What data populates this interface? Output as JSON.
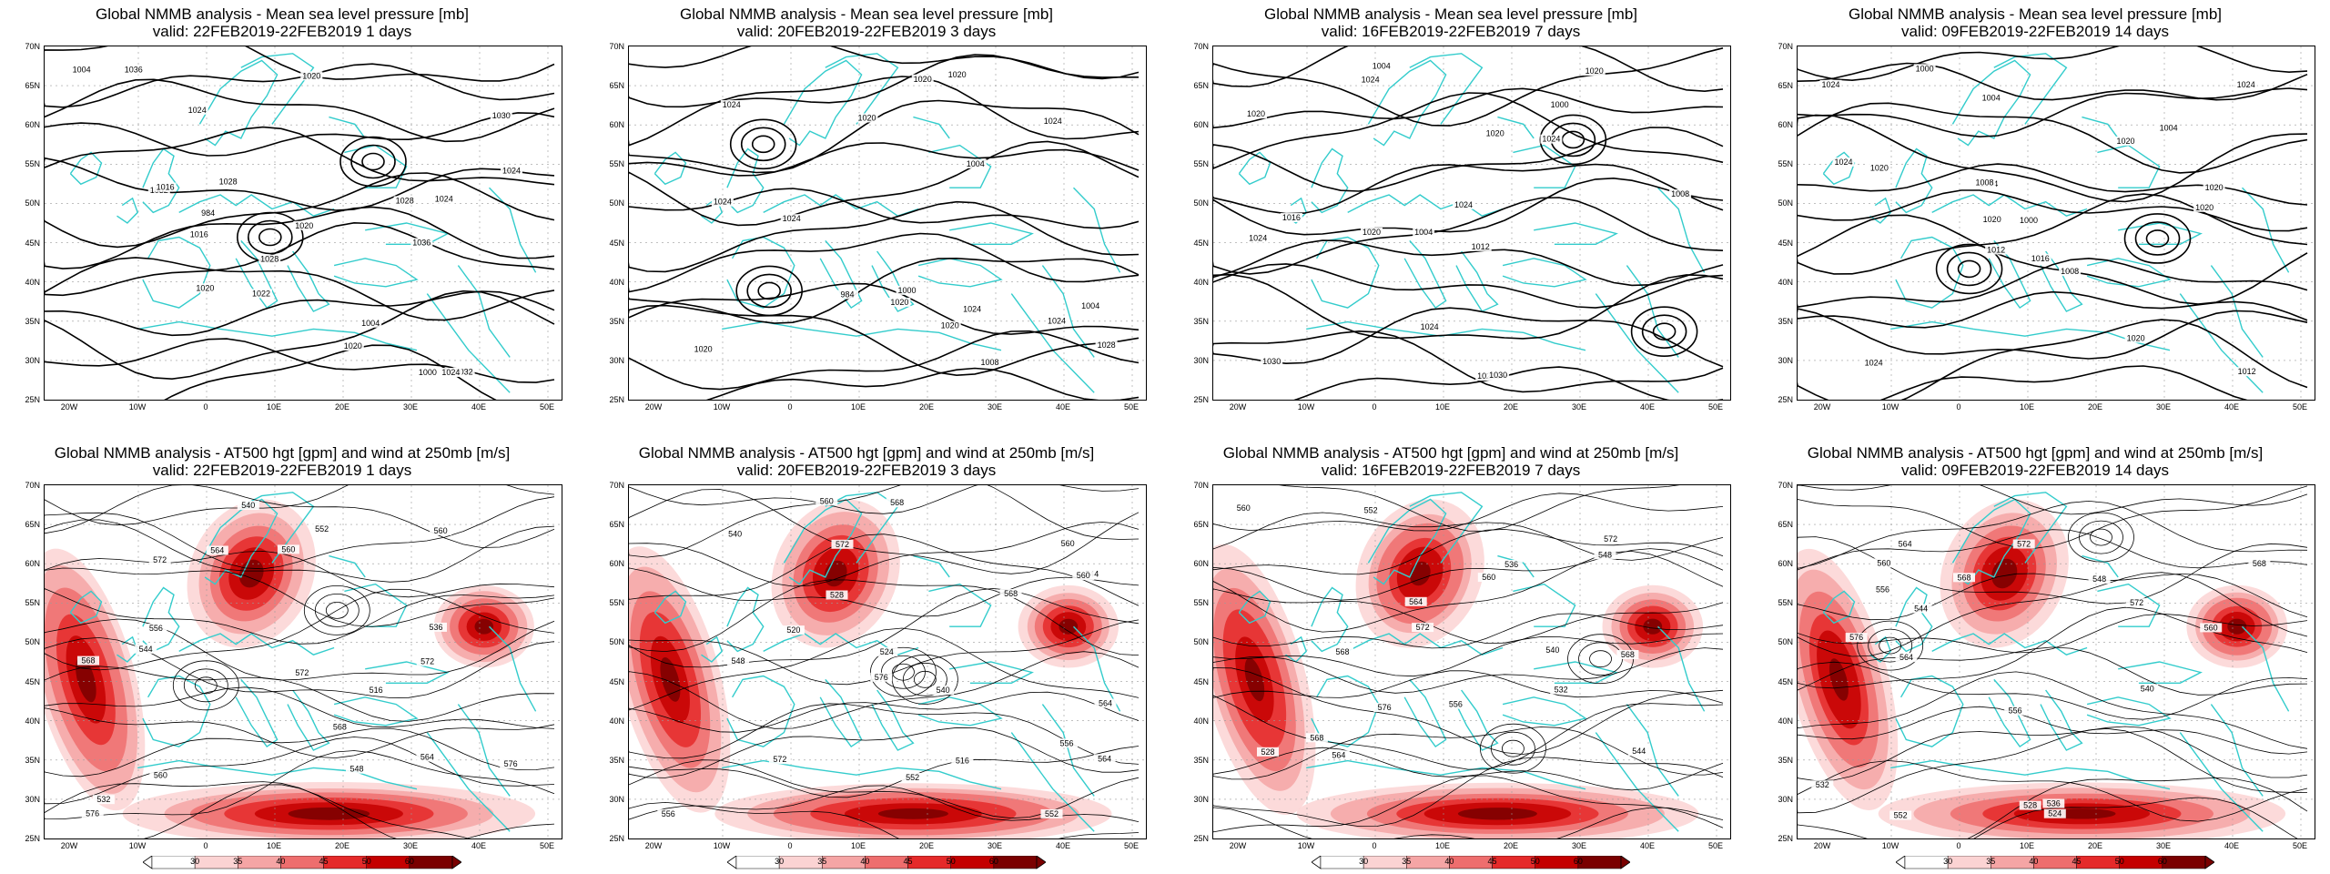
{
  "panels": [
    {
      "row": 0,
      "col": 0,
      "title_line1": "Global NMMB analysis - Mean sea level pressure [mb]",
      "title_line2": "valid: 22FEB2019-22FEB2019   1 days",
      "contour_labels": [
        "1028",
        "1032",
        "1036",
        "1036",
        "1032",
        "1024",
        "1022",
        "1016",
        "1020",
        "1028",
        "1024",
        "1020",
        "1004",
        "1000",
        "984",
        "1004",
        "1020",
        "1024",
        "1030",
        "1028",
        "1024",
        "1016",
        "1020"
      ]
    },
    {
      "row": 0,
      "col": 1,
      "title_line1": "Global NMMB analysis - Mean sea level pressure [mb]",
      "title_line2": "valid: 20FEB2019-22FEB2019   3 days",
      "contour_labels": [
        "1024",
        "1004",
        "1000",
        "1020",
        "1024",
        "1004",
        "1008",
        "1028",
        "1024",
        "1020",
        "1024",
        "1024",
        "1020",
        "1020",
        "984",
        "1020",
        "1020",
        "1024"
      ]
    },
    {
      "row": 0,
      "col": 2,
      "title_line1": "Global NMMB analysis - Mean sea level pressure [mb]",
      "title_line2": "valid: 16FEB2019-22FEB2019   7 days",
      "contour_labels": [
        "1004",
        "1000",
        "1008",
        "1004",
        "1012",
        "1016",
        "1020",
        "1024",
        "1024",
        "1020",
        "1024",
        "1030",
        "1024",
        "1020",
        "1020",
        "1030",
        "1024",
        "1020"
      ]
    },
    {
      "row": 0,
      "col": 3,
      "title_line1": "Global NMMB analysis - Mean sea level pressure [mb]",
      "title_line2": "valid: 09FEB2019-22FEB2019   14 days",
      "contour_labels": [
        "1004",
        "1000",
        "1004",
        "1000",
        "1004",
        "1008",
        "1008",
        "1012",
        "1012",
        "1016",
        "1020",
        "1020",
        "1024",
        "1024",
        "1020",
        "1024",
        "1020",
        "1020",
        "1024",
        "1020"
      ]
    },
    {
      "row": 1,
      "col": 0,
      "title_line1": "Global NMMB analysis - AT500 hgt [gpm] and wind at 250mb [m/s]",
      "title_line2": "valid: 22FEB2019-22FEB2019   1 days",
      "contour_labels": [
        "556",
        "560",
        "564",
        "568",
        "572",
        "576",
        "516",
        "532",
        "536",
        "540",
        "544",
        "548",
        "552",
        "560",
        "572",
        "560",
        "564",
        "568",
        "572",
        "576"
      ]
    },
    {
      "row": 1,
      "col": 1,
      "title_line1": "Global NMMB analysis - AT500 hgt [gpm] and wind at 250mb [m/s]",
      "title_line2": "valid: 20FEB2019-22FEB2019   3 days",
      "contour_labels": [
        "540",
        "544",
        "548",
        "552",
        "556",
        "560",
        "564",
        "568",
        "516",
        "520",
        "524",
        "528",
        "540",
        "552",
        "556",
        "560",
        "572",
        "576",
        "560",
        "564",
        "568",
        "572"
      ]
    },
    {
      "row": 1,
      "col": 2,
      "title_line1": "Global NMMB analysis - AT500 hgt [gpm] and wind at 250mb [m/s]",
      "title_line2": "valid: 16FEB2019-22FEB2019   7 days",
      "contour_labels": [
        "528",
        "532",
        "536",
        "540",
        "544",
        "548",
        "552",
        "556",
        "560",
        "564",
        "568",
        "568",
        "572",
        "576",
        "560",
        "564",
        "568",
        "572"
      ]
    },
    {
      "row": 1,
      "col": 3,
      "title_line1": "Global NMMB analysis - AT500 hgt [gpm] and wind at 250mb [m/s]",
      "title_line2": "valid: 09FEB2019-22FEB2019   14 days",
      "contour_labels": [
        "524",
        "528",
        "532",
        "536",
        "540",
        "544",
        "548",
        "552",
        "556",
        "560",
        "564",
        "568",
        "572",
        "576",
        "556",
        "560",
        "564",
        "568",
        "572"
      ]
    }
  ],
  "axes": {
    "lat_labels": [
      "70N",
      "65N",
      "60N",
      "55N",
      "50N",
      "45N",
      "40N",
      "35N",
      "30N",
      "25N"
    ],
    "lon_labels": [
      "20W",
      "10W",
      "0",
      "10E",
      "20E",
      "30E",
      "40E",
      "50E"
    ]
  },
  "colorbar": {
    "labels": [
      "30",
      "35",
      "40",
      "45",
      "50",
      "60"
    ],
    "colors": [
      "#ffffff",
      "#fbd3d3",
      "#f5a5a5",
      "#ee6e6e",
      "#e52a2a",
      "#c40000",
      "#7a0000"
    ]
  },
  "colors": {
    "coast": "#33cccc",
    "contour": "#000000",
    "grid": "#9a9a9a"
  }
}
